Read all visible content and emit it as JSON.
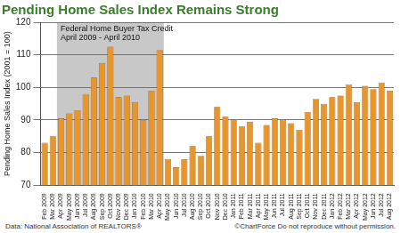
{
  "chart_data": {
    "type": "bar",
    "title": "Pending Home Sales Index Remains Strong",
    "y_label": "Pending Home Sales Index (2001 = 100)",
    "categories": [
      "Feb 2009",
      "Mar 2009",
      "Apr 2009",
      "May 2009",
      "Jun 2009",
      "Jul 2009",
      "Aug 2009",
      "Sep 2009",
      "Oct 2009",
      "Nov 2009",
      "Dec 2009",
      "Jan 2010",
      "Feb 2010",
      "Mar 2010",
      "Apr 2010",
      "May 2010",
      "Jun 2010",
      "Jul 2010",
      "Aug 2010",
      "Sep 2010",
      "Oct 2010",
      "Nov 2010",
      "Dec 2010",
      "Jan 2011",
      "Feb 2011",
      "Mar 2011",
      "Apr 2011",
      "May 2011",
      "Jun 2011",
      "Jul 2011",
      "Aug 2011",
      "Sep 2011",
      "Oct 2011",
      "Nov 2011",
      "Dec 2011",
      "Jan 2012",
      "Feb 2012",
      "Mar 2012",
      "Apr 2012",
      "May 2012",
      "Jun 2012",
      "Jul 2012",
      "Aug 2012"
    ],
    "values": [
      83,
      85,
      90.5,
      92,
      93,
      98,
      103,
      107.5,
      112.5,
      97,
      97.5,
      95.5,
      90,
      99,
      111.5,
      78,
      75.5,
      78,
      82,
      79,
      85,
      94,
      91,
      90,
      88,
      89.5,
      83,
      88.5,
      90.5,
      90,
      89,
      87,
      92.5,
      96.5,
      95,
      97,
      97.5,
      101,
      95.5,
      100.5,
      99.5,
      101.5,
      99
    ],
    "color": "#e8952c",
    "ylim": [
      70,
      120
    ],
    "yticks": [
      70,
      80,
      90,
      100,
      110,
      120
    ],
    "grid": true,
    "annotation": {
      "text": "Federal Home Buyer Tax Credit",
      "subtext": "April 2009 - April 2010",
      "start": "Apr 2009",
      "end": "Apr 2010"
    },
    "source": "Data: National Association of REALTORS®",
    "credit": "©ChartForce  Do not reproduce without permission."
  }
}
